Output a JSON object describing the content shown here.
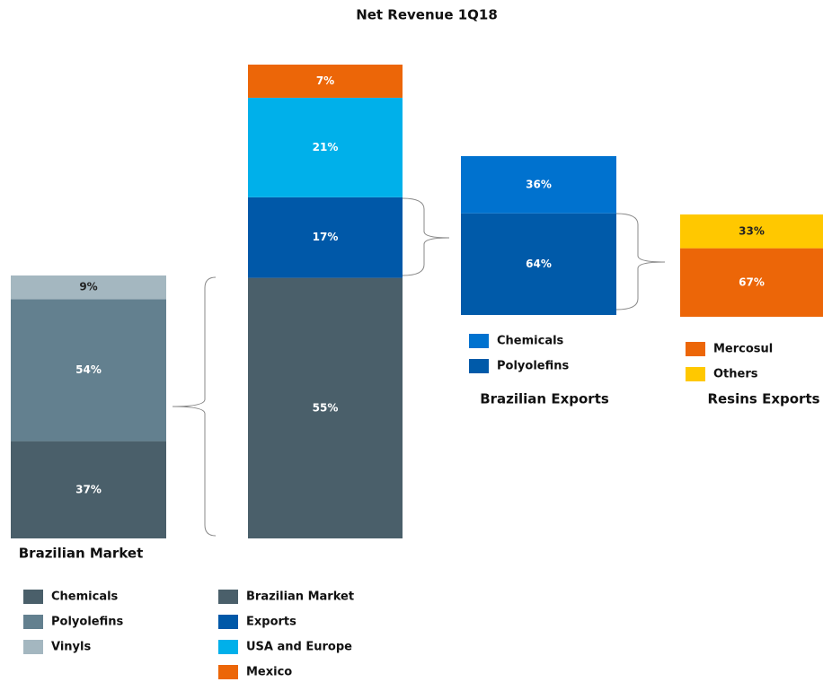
{
  "chart_data": [
    {
      "type": "stacked_bar",
      "title": "Brazilian Market",
      "series": [
        {
          "name": "Chemicals",
          "color": "#4a5f6a",
          "values": [
            37
          ],
          "value_labels": [
            "37%"
          ]
        },
        {
          "name": "Polyolefins",
          "color": "#63808f",
          "values": [
            54
          ],
          "value_labels": [
            "54%"
          ]
        },
        {
          "name": "Vinyls",
          "color": "#a4b7c0",
          "values": [
            9
          ],
          "value_labels": [
            "9%"
          ]
        }
      ]
    },
    {
      "type": "stacked_bar",
      "title": "Net Revenue 1Q18",
      "series": [
        {
          "name": "Brazilian Market",
          "color": "#4a5f6a",
          "values": [
            55
          ],
          "value_labels": [
            "55%"
          ]
        },
        {
          "name": "Exports",
          "color": "#0058a8",
          "values": [
            17
          ],
          "value_labels": [
            "17%"
          ]
        },
        {
          "name": "USA and Europe",
          "color": "#00b0ea",
          "values": [
            21
          ],
          "value_labels": [
            "21%"
          ]
        },
        {
          "name": "Mexico",
          "color": "#ec6608",
          "values": [
            7
          ],
          "value_labels": [
            "7%"
          ]
        }
      ]
    },
    {
      "type": "stacked_bar",
      "title": "Brazilian Exports",
      "series": [
        {
          "name": "Chemicals",
          "color": "#0072cf",
          "values": [
            36
          ],
          "value_labels": [
            "36%"
          ]
        },
        {
          "name": "Polyolefins",
          "color": "#005aa9",
          "values": [
            64
          ],
          "value_labels": [
            "64%"
          ]
        }
      ]
    },
    {
      "type": "stacked_bar",
      "title": "Resins Exports",
      "series": [
        {
          "name": "Mercosul",
          "color": "#ec6608",
          "values": [
            67
          ],
          "value_labels": [
            "67%"
          ]
        },
        {
          "name": "Others",
          "color": "#ffc800",
          "values": [
            33
          ],
          "value_labels": [
            "33%"
          ]
        }
      ]
    }
  ]
}
